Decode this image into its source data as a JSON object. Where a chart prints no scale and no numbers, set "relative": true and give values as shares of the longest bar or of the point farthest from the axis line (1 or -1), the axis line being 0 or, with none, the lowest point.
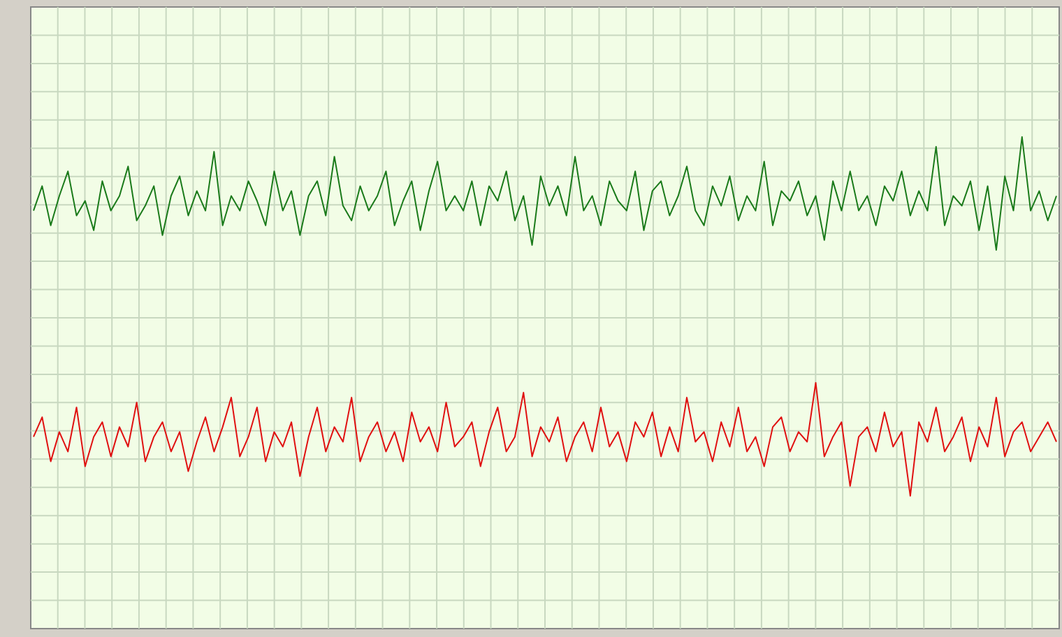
{
  "chart_data": {
    "type": "line",
    "relative": true,
    "grid": true,
    "marker": "none",
    "line_style": "solid",
    "categories": [
      null,
      null,
      null,
      null,
      null,
      null,
      null,
      null,
      null,
      null,
      null,
      null,
      null,
      null,
      null,
      null,
      null,
      null,
      null,
      null,
      null,
      null,
      null,
      null,
      null,
      null,
      null,
      null,
      null,
      null,
      null,
      null,
      null,
      null,
      null,
      null,
      null,
      null,
      null,
      null,
      null,
      null,
      null,
      null,
      null,
      null,
      null,
      null,
      null,
      null,
      null,
      null,
      null,
      null,
      null,
      null,
      null,
      null,
      null,
      null,
      null,
      null,
      null,
      null,
      null,
      null,
      null,
      null,
      null,
      null,
      null,
      null,
      null,
      null,
      null,
      null,
      null,
      null,
      null,
      null,
      null,
      null,
      null,
      null,
      null,
      null,
      null,
      null,
      null,
      null,
      null,
      null,
      null,
      null,
      null,
      null,
      null,
      null,
      null,
      null,
      null,
      null,
      null,
      null,
      null,
      null,
      null,
      null,
      null,
      null,
      null,
      null,
      null,
      null,
      null,
      null,
      null,
      null,
      null,
      null
    ],
    "series": [
      {
        "color": "#1a7a1a",
        "values": [
          0.85,
          0.9,
          0.82,
          0.88,
          0.93,
          0.84,
          0.87,
          0.81,
          0.91,
          0.85,
          0.88,
          0.94,
          0.83,
          0.86,
          0.9,
          0.8,
          0.88,
          0.92,
          0.84,
          0.89,
          0.85,
          0.97,
          0.82,
          0.88,
          0.85,
          0.91,
          0.87,
          0.82,
          0.93,
          0.85,
          0.89,
          0.8,
          0.88,
          0.91,
          0.84,
          0.96,
          0.86,
          0.83,
          0.9,
          0.85,
          0.88,
          0.93,
          0.82,
          0.87,
          0.91,
          0.81,
          0.89,
          0.95,
          0.85,
          0.88,
          0.85,
          0.91,
          0.82,
          0.9,
          0.87,
          0.93,
          0.83,
          0.88,
          0.78,
          0.92,
          0.86,
          0.9,
          0.84,
          0.96,
          0.85,
          0.88,
          0.82,
          0.91,
          0.87,
          0.85,
          0.93,
          0.81,
          0.89,
          0.91,
          0.84,
          0.88,
          0.94,
          0.85,
          0.82,
          0.9,
          0.86,
          0.92,
          0.83,
          0.88,
          0.85,
          0.95,
          0.82,
          0.89,
          0.87,
          0.91,
          0.84,
          0.88,
          0.79,
          0.91,
          0.85,
          0.93,
          0.85,
          0.88,
          0.82,
          0.9,
          0.87,
          0.93,
          0.84,
          0.89,
          0.85,
          0.98,
          0.82,
          0.88,
          0.86,
          0.91,
          0.81,
          0.9,
          0.77,
          0.92,
          0.85,
          1.0,
          0.85,
          0.89,
          0.83,
          0.88
        ]
      },
      {
        "color": "#e01010",
        "values": [
          0.39,
          0.43,
          0.34,
          0.4,
          0.36,
          0.45,
          0.33,
          0.39,
          0.42,
          0.35,
          0.41,
          0.37,
          0.46,
          0.34,
          0.39,
          0.42,
          0.36,
          0.4,
          0.32,
          0.38,
          0.43,
          0.36,
          0.41,
          0.47,
          0.35,
          0.39,
          0.45,
          0.34,
          0.4,
          0.37,
          0.42,
          0.31,
          0.39,
          0.45,
          0.36,
          0.41,
          0.38,
          0.47,
          0.34,
          0.39,
          0.42,
          0.36,
          0.4,
          0.34,
          0.44,
          0.38,
          0.41,
          0.36,
          0.46,
          0.37,
          0.39,
          0.42,
          0.33,
          0.4,
          0.45,
          0.36,
          0.39,
          0.48,
          0.35,
          0.41,
          0.38,
          0.43,
          0.34,
          0.39,
          0.42,
          0.36,
          0.45,
          0.37,
          0.4,
          0.34,
          0.42,
          0.39,
          0.44,
          0.35,
          0.41,
          0.36,
          0.47,
          0.38,
          0.4,
          0.34,
          0.42,
          0.37,
          0.45,
          0.36,
          0.39,
          0.33,
          0.41,
          0.43,
          0.36,
          0.4,
          0.38,
          0.5,
          0.35,
          0.39,
          0.42,
          0.29,
          0.39,
          0.41,
          0.36,
          0.44,
          0.37,
          0.4,
          0.27,
          0.42,
          0.38,
          0.45,
          0.36,
          0.39,
          0.43,
          0.34,
          0.41,
          0.37,
          0.47,
          0.35,
          0.4,
          0.42,
          0.36,
          0.39,
          0.42,
          0.38
        ]
      }
    ]
  }
}
